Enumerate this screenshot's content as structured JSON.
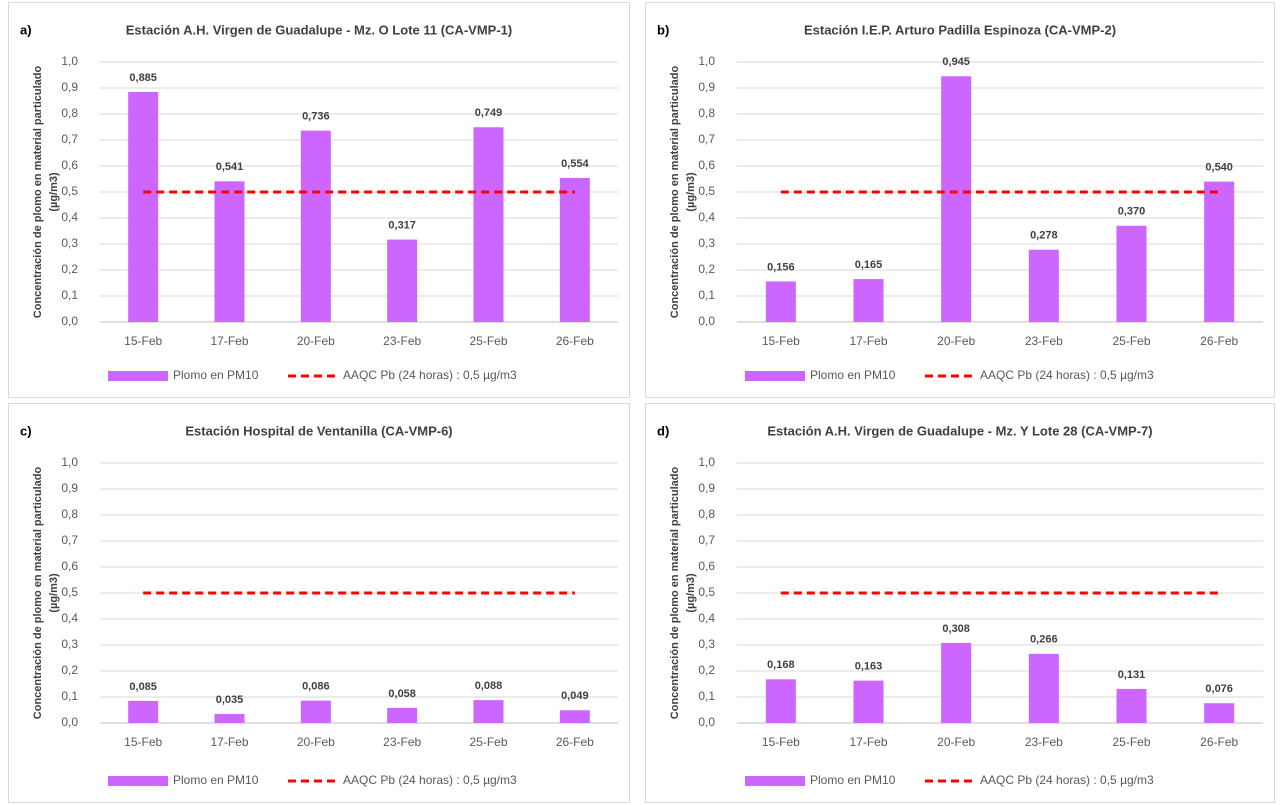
{
  "chart_data": [
    {
      "type": "bar",
      "label": "a)",
      "title": "Estación A.H. Virgen de Guadalupe - Mz. O Lote 11 (CA-VMP-1)",
      "y_label": [
        "Concentración de plomo en material particulado",
        "(µg/m3)"
      ],
      "categories": [
        "15-Feb",
        "17-Feb",
        "20-Feb",
        "23-Feb",
        "25-Feb",
        "26-Feb"
      ],
      "series": [
        {
          "name": "Plomo en PM10",
          "color": "#cc66ff",
          "values": [
            0.885,
            0.541,
            0.736,
            0.317,
            0.749,
            0.554
          ],
          "value_labels": [
            "0,885",
            "0,541",
            "0,736",
            "0,317",
            "0,749",
            "0,554"
          ]
        },
        {
          "name": "AAQC Pb (24 horas) : 0,5 µg/m3",
          "color": "#ff0000",
          "type": "line",
          "dashed": true,
          "values": [
            0.5,
            0.5,
            0.5,
            0.5,
            0.5,
            0.5
          ]
        }
      ],
      "ylim": [
        0,
        1
      ],
      "yticks": [
        {
          "value": 0,
          "label": "0,0"
        },
        {
          "value": 0.1,
          "label": "0,1"
        },
        {
          "value": 0.2,
          "label": "0,2"
        },
        {
          "value": 0.3,
          "label": "0,3"
        },
        {
          "value": 0.4,
          "label": "0,4"
        },
        {
          "value": 0.5,
          "label": "0,5"
        },
        {
          "value": 0.6,
          "label": "0,6"
        },
        {
          "value": 0.7,
          "label": "0,7"
        },
        {
          "value": 0.8,
          "label": "0,8"
        },
        {
          "value": 0.9,
          "label": "0,9"
        },
        {
          "value": 1,
          "label": "1,0"
        }
      ],
      "grid": true,
      "legend": "bottom"
    },
    {
      "type": "bar",
      "label": "b)",
      "title": "Estación I.E.P. Arturo Padilla Espinoza (CA-VMP-2)",
      "y_label": [
        "Concentración de plomo en material particulado",
        "(µg/m3)"
      ],
      "categories": [
        "15-Feb",
        "17-Feb",
        "20-Feb",
        "23-Feb",
        "25-Feb",
        "26-Feb"
      ],
      "series": [
        {
          "name": "Plomo en PM10",
          "color": "#cc66ff",
          "values": [
            0.156,
            0.165,
            0.945,
            0.278,
            0.37,
            0.54
          ],
          "value_labels": [
            "0,156",
            "0,165",
            "0,945",
            "0,278",
            "0,370",
            "0,540"
          ]
        },
        {
          "name": "AAQC Pb (24 horas) : 0,5 µg/m3",
          "color": "#ff0000",
          "type": "line",
          "dashed": true,
          "values": [
            0.5,
            0.5,
            0.5,
            0.5,
            0.5,
            0.5
          ]
        }
      ],
      "ylim": [
        0,
        1
      ],
      "yticks": [
        {
          "value": 0,
          "label": "0,0"
        },
        {
          "value": 0.1,
          "label": "0,1"
        },
        {
          "value": 0.2,
          "label": "0,2"
        },
        {
          "value": 0.3,
          "label": "0,3"
        },
        {
          "value": 0.4,
          "label": "0,4"
        },
        {
          "value": 0.5,
          "label": "0,5"
        },
        {
          "value": 0.6,
          "label": "0,6"
        },
        {
          "value": 0.7,
          "label": "0,7"
        },
        {
          "value": 0.8,
          "label": "0,8"
        },
        {
          "value": 0.9,
          "label": "0,9"
        },
        {
          "value": 1,
          "label": "1,0"
        }
      ],
      "grid": true,
      "legend": "bottom"
    },
    {
      "type": "bar",
      "label": "c)",
      "title": "Estación Hospital de Ventanilla (CA-VMP-6)",
      "y_label": [
        "Concentración de plomo en material particulado",
        "(µg/m3)"
      ],
      "categories": [
        "15-Feb",
        "17-Feb",
        "20-Feb",
        "23-Feb",
        "25-Feb",
        "26-Feb"
      ],
      "series": [
        {
          "name": "Plomo en PM10",
          "color": "#cc66ff",
          "values": [
            0.085,
            0.035,
            0.086,
            0.058,
            0.088,
            0.049
          ],
          "value_labels": [
            "0,085",
            "0,035",
            "0,086",
            "0,058",
            "0,088",
            "0,049"
          ]
        },
        {
          "name": "AAQC Pb (24 horas) : 0,5 µg/m3",
          "color": "#ff0000",
          "type": "line",
          "dashed": true,
          "values": [
            0.5,
            0.5,
            0.5,
            0.5,
            0.5,
            0.5
          ]
        }
      ],
      "ylim": [
        0,
        1
      ],
      "yticks": [
        {
          "value": 0,
          "label": "0,0"
        },
        {
          "value": 0.1,
          "label": "0,1"
        },
        {
          "value": 0.2,
          "label": "0,2"
        },
        {
          "value": 0.3,
          "label": "0,3"
        },
        {
          "value": 0.4,
          "label": "0,4"
        },
        {
          "value": 0.5,
          "label": "0,5"
        },
        {
          "value": 0.6,
          "label": "0,6"
        },
        {
          "value": 0.7,
          "label": "0,7"
        },
        {
          "value": 0.8,
          "label": "0,8"
        },
        {
          "value": 0.9,
          "label": "0,9"
        },
        {
          "value": 1,
          "label": "1,0"
        }
      ],
      "grid": true,
      "legend": "bottom"
    },
    {
      "type": "bar",
      "label": "d)",
      "title": "Estación A.H. Virgen de Guadalupe - Mz. Y Lote 28 (CA-VMP-7)",
      "y_label": [
        "Concentración de plomo en material particulado",
        "(µg/m3)"
      ],
      "categories": [
        "15-Feb",
        "17-Feb",
        "20-Feb",
        "23-Feb",
        "25-Feb",
        "26-Feb"
      ],
      "series": [
        {
          "name": "Plomo en PM10",
          "color": "#cc66ff",
          "values": [
            0.168,
            0.163,
            0.308,
            0.266,
            0.131,
            0.076
          ],
          "value_labels": [
            "0,168",
            "0,163",
            "0,308",
            "0,266",
            "0,131",
            "0,076"
          ]
        },
        {
          "name": "AAQC Pb (24 horas) : 0,5 µg/m3",
          "color": "#ff0000",
          "type": "line",
          "dashed": true,
          "values": [
            0.5,
            0.5,
            0.5,
            0.5,
            0.5,
            0.5
          ]
        }
      ],
      "ylim": [
        0,
        1
      ],
      "yticks": [
        {
          "value": 0,
          "label": "0,0"
        },
        {
          "value": 0.1,
          "label": "0,1"
        },
        {
          "value": 0.2,
          "label": "0,2"
        },
        {
          "value": 0.3,
          "label": "0,3"
        },
        {
          "value": 0.4,
          "label": "0,4"
        },
        {
          "value": 0.5,
          "label": "0,5"
        },
        {
          "value": 0.6,
          "label": "0,6"
        },
        {
          "value": 0.7,
          "label": "0,7"
        },
        {
          "value": 0.8,
          "label": "0,8"
        },
        {
          "value": 0.9,
          "label": "0,9"
        },
        {
          "value": 1,
          "label": "1,0"
        }
      ],
      "grid": true,
      "legend": "bottom"
    }
  ]
}
